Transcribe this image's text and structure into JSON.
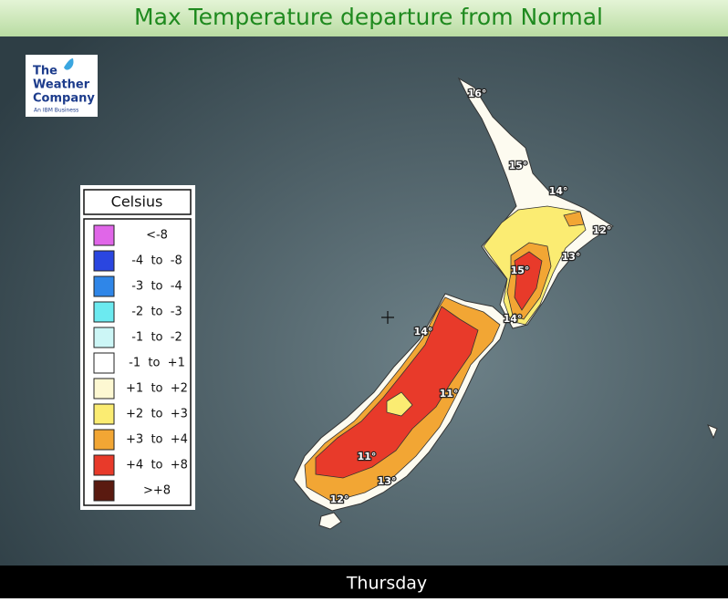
{
  "header": {
    "title": "Max Temperature departure from Normal"
  },
  "logo": {
    "lines": [
      "The",
      "Weather",
      "Company"
    ],
    "tagline": "An IBM Business"
  },
  "legend": {
    "title": "Celsius",
    "items": [
      {
        "label": "<-8",
        "color": "#e066e8"
      },
      {
        "label": "-4  to  -8",
        "color": "#2a46e0"
      },
      {
        "label": "-3  to  -4",
        "color": "#2f86e8"
      },
      {
        "label": "-2  to  -3",
        "color": "#6ceaf0"
      },
      {
        "label": "-1  to  -2",
        "color": "#ccf6f6"
      },
      {
        "label": "-1  to  +1",
        "color": "#ffffff"
      },
      {
        "label": "+1  to  +2",
        "color": "#fdf8d2"
      },
      {
        "label": "+2  to  +3",
        "color": "#fbec72"
      },
      {
        "label": "+3  to  +4",
        "color": "#f2a634"
      },
      {
        "label": "+4  to  +8",
        "color": "#e83a2a"
      },
      {
        "label": ">+8",
        "color": "#5a1a10"
      }
    ]
  },
  "map_labels": [
    "16°",
    "15°",
    "14°",
    "12°",
    "13°",
    "15°",
    "14°",
    "14°",
    "11°",
    "11°",
    "13°",
    "12°"
  ],
  "footer": {
    "day": "Thursday"
  }
}
